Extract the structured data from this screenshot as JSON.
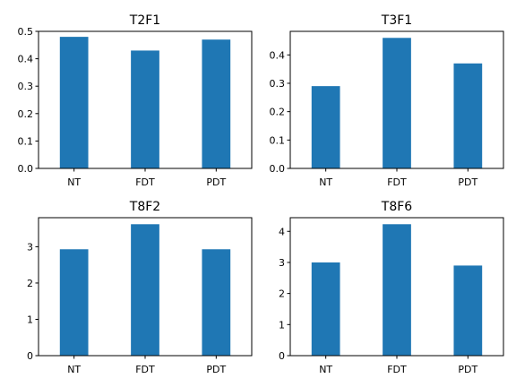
{
  "chart_data": [
    {
      "type": "bar",
      "title": "T2F1",
      "categories": [
        "NT",
        "FDT",
        "PDT"
      ],
      "values": [
        0.48,
        0.43,
        0.47
      ],
      "ylim": [
        0,
        0.5
      ],
      "yticks": [
        0.0,
        0.1,
        0.2,
        0.3,
        0.4,
        0.5
      ],
      "ytick_labels": [
        "0.0",
        "0.1",
        "0.2",
        "0.3",
        "0.4",
        "0.5"
      ],
      "bar_color": "#1f77b4",
      "grid": false
    },
    {
      "type": "bar",
      "title": "T3F1",
      "categories": [
        "NT",
        "FDT",
        "PDT"
      ],
      "values": [
        0.29,
        0.46,
        0.37
      ],
      "ylim": [
        0,
        0.483
      ],
      "yticks": [
        0.0,
        0.1,
        0.2,
        0.3,
        0.4
      ],
      "ytick_labels": [
        "0.0",
        "0.1",
        "0.2",
        "0.3",
        "0.4"
      ],
      "bar_color": "#1f77b4",
      "grid": false
    },
    {
      "type": "bar",
      "title": "T8F2",
      "categories": [
        "NT",
        "FDT",
        "PDT"
      ],
      "values": [
        2.93,
        3.62,
        2.93
      ],
      "ylim": [
        0,
        3.8
      ],
      "yticks": [
        0,
        1,
        2,
        3
      ],
      "ytick_labels": [
        "0",
        "1",
        "2",
        "3"
      ],
      "bar_color": "#1f77b4",
      "grid": false
    },
    {
      "type": "bar",
      "title": "T8F6",
      "categories": [
        "NT",
        "FDT",
        "PDT"
      ],
      "values": [
        3.0,
        4.23,
        2.9
      ],
      "ylim": [
        0,
        4.44
      ],
      "yticks": [
        0,
        1,
        2,
        3,
        4
      ],
      "ytick_labels": [
        "0",
        "1",
        "2",
        "3",
        "4"
      ],
      "bar_color": "#1f77b4",
      "grid": false
    }
  ]
}
